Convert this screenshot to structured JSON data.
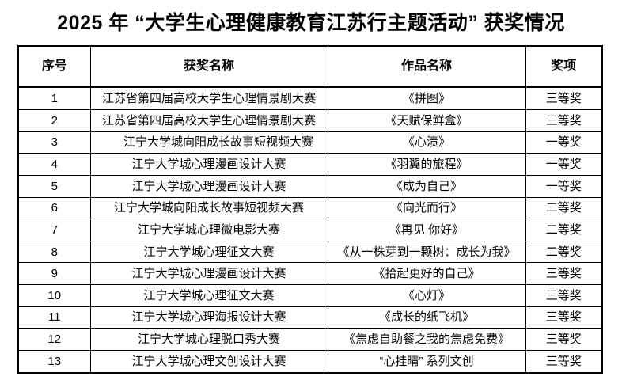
{
  "page": {
    "background_color": "#ffffff",
    "text_color": "#000000",
    "border_color": "#000000"
  },
  "title": "2025 年 “大学生心理健康教育江苏行主题活动” 获奖情况",
  "table": {
    "headers": [
      "序号",
      "获奖名称",
      "作品名称",
      "奖项"
    ],
    "rows": [
      {
        "no": "1",
        "award": "江苏省第四届高校大学生心理情景剧大赛",
        "work": "《拼图》",
        "prize": "三等奖"
      },
      {
        "no": "2",
        "award": "江苏省第四届高校大学生心理情景剧大赛",
        "work": "《天赋保鲜盒》",
        "prize": "三等奖"
      },
      {
        "no": "3",
        "award": "江宁大学城向阳成长故事短视频大赛",
        "work": "《心渍》",
        "prize": "一等奖",
        "award_indent": true
      },
      {
        "no": "4",
        "award": "江宁大学城心理漫画设计大赛",
        "work": "《羽翼的旅程》",
        "prize": "一等奖"
      },
      {
        "no": "5",
        "award": "江宁大学城心理漫画设计大赛",
        "work": "《成为自己》",
        "prize": "一等奖"
      },
      {
        "no": "6",
        "award": "江宁大学城向阳成长故事短视频大赛",
        "work": "《向光而行》",
        "prize": "二等奖"
      },
      {
        "no": "7",
        "award": "江宁大学城心理微电影大赛",
        "work": "《再见 你好》",
        "prize": "二等奖"
      },
      {
        "no": "8",
        "award": "江宁大学城心理征文大赛",
        "work": "《从一株芽到一颗树：成长为我》",
        "prize": "二等奖"
      },
      {
        "no": "9",
        "award": "江宁大学城心理漫画设计大赛",
        "work": "《拾起更好的自己》",
        "prize": "三等奖"
      },
      {
        "no": "10",
        "award": "江宁大学城心理征文大赛",
        "work": "《心灯》",
        "prize": "三等奖"
      },
      {
        "no": "11",
        "award": "江宁大学城心理海报设计大赛",
        "work": "《成长的纸飞机》",
        "prize": "三等奖"
      },
      {
        "no": "12",
        "award": "江宁大学城心理脱口秀大赛",
        "work": "《焦虑自助餐之我的焦虑免费》",
        "prize": "三等奖"
      },
      {
        "no": "13",
        "award": "江宁大学城心理文创设计大赛",
        "work": "“心挂晴” 系列文创",
        "prize": "三等奖"
      }
    ]
  }
}
